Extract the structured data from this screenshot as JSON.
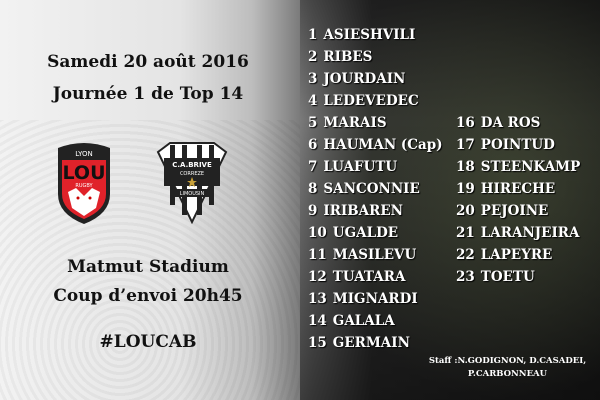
{
  "match": {
    "date": "Samedi 20 août 2016",
    "round": "Journée 1 de Top 14",
    "stadium": "Matmut Stadium",
    "kickoff": "Coup d’envoi 20h45",
    "hashtag": "#LOUCAB"
  },
  "logos": {
    "home": {
      "top": "LYON",
      "main": "LOU",
      "sub": "RUGBY",
      "color": "#e0222a"
    },
    "away": {
      "line1": "C.A.BRIVE",
      "line2": "CORREZE",
      "line3": "LIMOUSIN",
      "star_color": "#c9a23a"
    }
  },
  "starters": [
    {
      "n": "1",
      "name": "ASIESHVILI"
    },
    {
      "n": "2",
      "name": "RIBES"
    },
    {
      "n": "3",
      "name": "JOURDAIN"
    },
    {
      "n": "4",
      "name": "LEDEVEDEC"
    },
    {
      "n": "5",
      "name": "MARAIS"
    },
    {
      "n": "6",
      "name": "HAUMAN (Cap)"
    },
    {
      "n": "7",
      "name": "LUAFUTU"
    },
    {
      "n": "8",
      "name": "SANCONNIE"
    },
    {
      "n": "9",
      "name": "IRIBAREN"
    },
    {
      "n": "10",
      "name": "UGALDE"
    },
    {
      "n": "11",
      "name": "MASILEVU"
    },
    {
      "n": "12",
      "name": "TUATARA"
    },
    {
      "n": "13",
      "name": "MIGNARDI"
    },
    {
      "n": "14",
      "name": "GALALA"
    },
    {
      "n": "15",
      "name": "GERMAIN"
    }
  ],
  "replacements": [
    {
      "n": "16",
      "name": "DA ROS"
    },
    {
      "n": "17",
      "name": "POINTUD"
    },
    {
      "n": "18",
      "name": "STEENKAMP"
    },
    {
      "n": "19",
      "name": "HIRECHE"
    },
    {
      "n": "20",
      "name": "PEJOINE"
    },
    {
      "n": "21",
      "name": "LARANJEIRA"
    },
    {
      "n": "22",
      "name": "LAPEYRE"
    },
    {
      "n": "23",
      "name": "TOETU"
    }
  ],
  "staff": {
    "line1": "Staff :N.GODIGNON, D.CASADEI,",
    "line2": "P.CARBONNEAU"
  }
}
